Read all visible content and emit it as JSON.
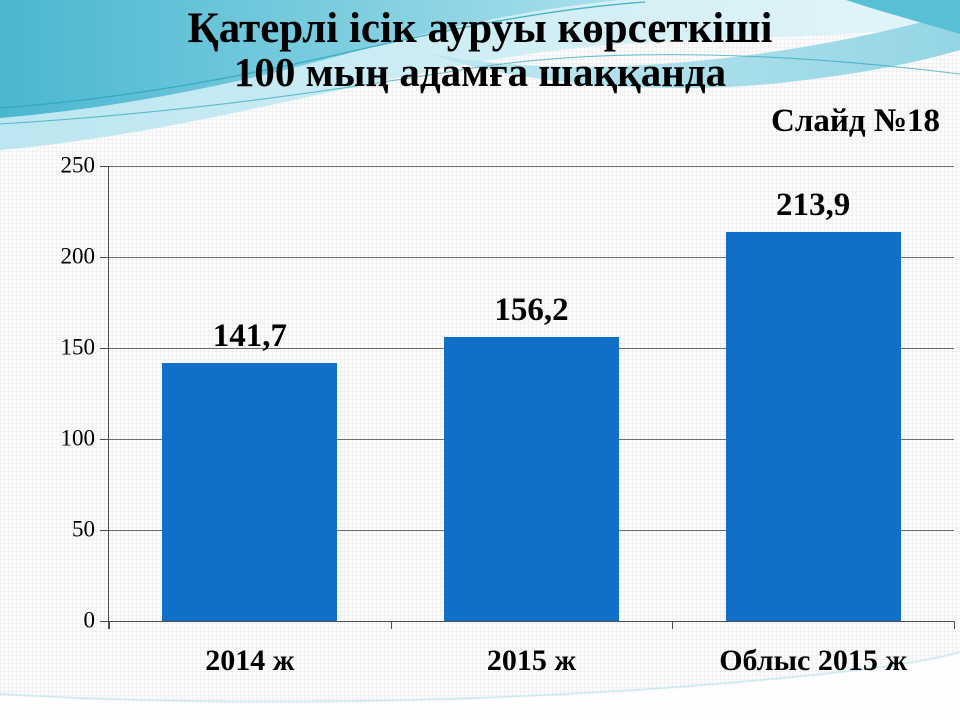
{
  "slide": {
    "title_line1": "Қатерлі ісік ауруы көрсеткіші",
    "title_line2": "100 мың адамға шаққанда",
    "slide_number": "Слайд №18"
  },
  "chart_data": {
    "type": "bar",
    "categories": [
      "2014 ж",
      "2015 ж",
      "Облыс 2015 ж"
    ],
    "values": [
      141.7,
      156.2,
      213.9
    ],
    "value_labels": [
      "141,7",
      "156,2",
      "213,9"
    ],
    "title": "",
    "xlabel": "",
    "ylabel": "",
    "ylim": [
      0,
      250
    ],
    "y_ticks": [
      0,
      50,
      100,
      150,
      200,
      250
    ],
    "y_tick_labels": [
      "0",
      "50",
      "100",
      "150",
      "200",
      "250"
    ],
    "grid": true,
    "legend_position": "none",
    "bar_color": "#1070C8"
  },
  "theme": {
    "accent_teal": "#4FB9D0",
    "light_blue": "#A6DEEB",
    "bar_blue": "#1070C8",
    "gridline_color": "#6E6E6E",
    "axis_color": "#4D4D4D",
    "text_color": "#000000",
    "background": "#FBFBFB"
  }
}
